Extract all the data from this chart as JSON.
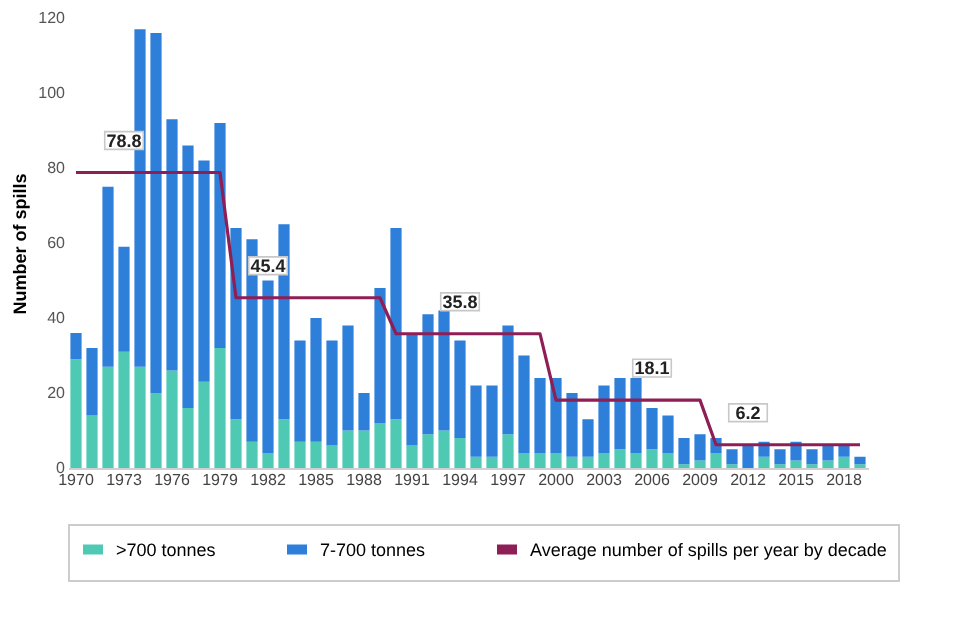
{
  "chart_data": {
    "type": "bar",
    "stacked": true,
    "ylabel": "Number of spills",
    "categories": [
      "1970",
      null,
      null,
      "1973",
      null,
      null,
      "1976",
      null,
      null,
      "1979",
      null,
      null,
      "1982",
      null,
      null,
      "1985",
      null,
      null,
      "1988",
      null,
      null,
      "1991",
      null,
      null,
      "1994",
      null,
      null,
      "1997",
      null,
      null,
      "2000",
      null,
      null,
      "2003",
      null,
      null,
      "2006",
      null,
      null,
      "2009",
      null,
      null,
      "2012",
      null,
      null,
      "2015",
      null,
      null,
      "2018",
      null
    ],
    "series": [
      {
        "name": ">700 tonnes",
        "color": "#4dc9b4",
        "values": [
          29,
          14,
          27,
          31,
          27,
          20,
          26,
          16,
          23,
          32,
          13,
          7,
          4,
          13,
          7,
          7,
          6,
          10,
          10,
          12,
          13,
          6,
          9,
          10,
          8,
          3,
          3,
          9,
          4,
          4,
          4,
          3,
          3,
          4,
          5,
          4,
          5,
          4,
          1,
          2,
          4,
          1,
          0,
          3,
          1,
          2,
          1,
          2,
          3,
          1
        ]
      },
      {
        "name": "7-700 tonnes",
        "color": "#2e7fd9",
        "values": [
          7,
          18,
          48,
          28,
          90,
          96,
          67,
          70,
          59,
          60,
          51,
          54,
          46,
          52,
          27,
          33,
          28,
          28,
          10,
          36,
          51,
          30,
          32,
          32,
          26,
          19,
          19,
          29,
          26,
          20,
          20,
          17,
          10,
          18,
          19,
          20,
          11,
          10,
          7,
          7,
          4,
          4,
          6,
          4,
          4,
          5,
          4,
          4,
          3,
          2
        ]
      },
      {
        "name": "Average number of spills per year by decade",
        "type": "line",
        "color": "#8e1f56",
        "values": [
          78.8,
          78.8,
          78.8,
          78.8,
          78.8,
          78.8,
          78.8,
          78.8,
          78.8,
          78.8,
          45.4,
          45.4,
          45.4,
          45.4,
          45.4,
          45.4,
          45.4,
          45.4,
          45.4,
          45.4,
          35.8,
          35.8,
          35.8,
          35.8,
          35.8,
          35.8,
          35.8,
          35.8,
          35.8,
          35.8,
          18.1,
          18.1,
          18.1,
          18.1,
          18.1,
          18.1,
          18.1,
          18.1,
          18.1,
          18.1,
          6.2,
          6.2,
          6.2,
          6.2,
          6.2,
          6.2,
          6.2,
          6.2,
          6.2,
          6.2
        ]
      }
    ],
    "annotations": [
      {
        "text": "78.8",
        "x": "1973",
        "y": 78.8
      },
      {
        "text": "45.4",
        "x": "1982",
        "y": 45.4
      },
      {
        "text": "35.8",
        "x": "1994",
        "y": 35.8
      },
      {
        "text": "18.1",
        "x": "2006",
        "y": 18.1
      },
      {
        "text": "6.2",
        "x": "2012",
        "y": 6.2
      }
    ],
    "ylim": [
      0,
      120
    ],
    "yticks": [
      0,
      20,
      40,
      60,
      80,
      100,
      120
    ],
    "grid": false,
    "legend": "bottom"
  }
}
